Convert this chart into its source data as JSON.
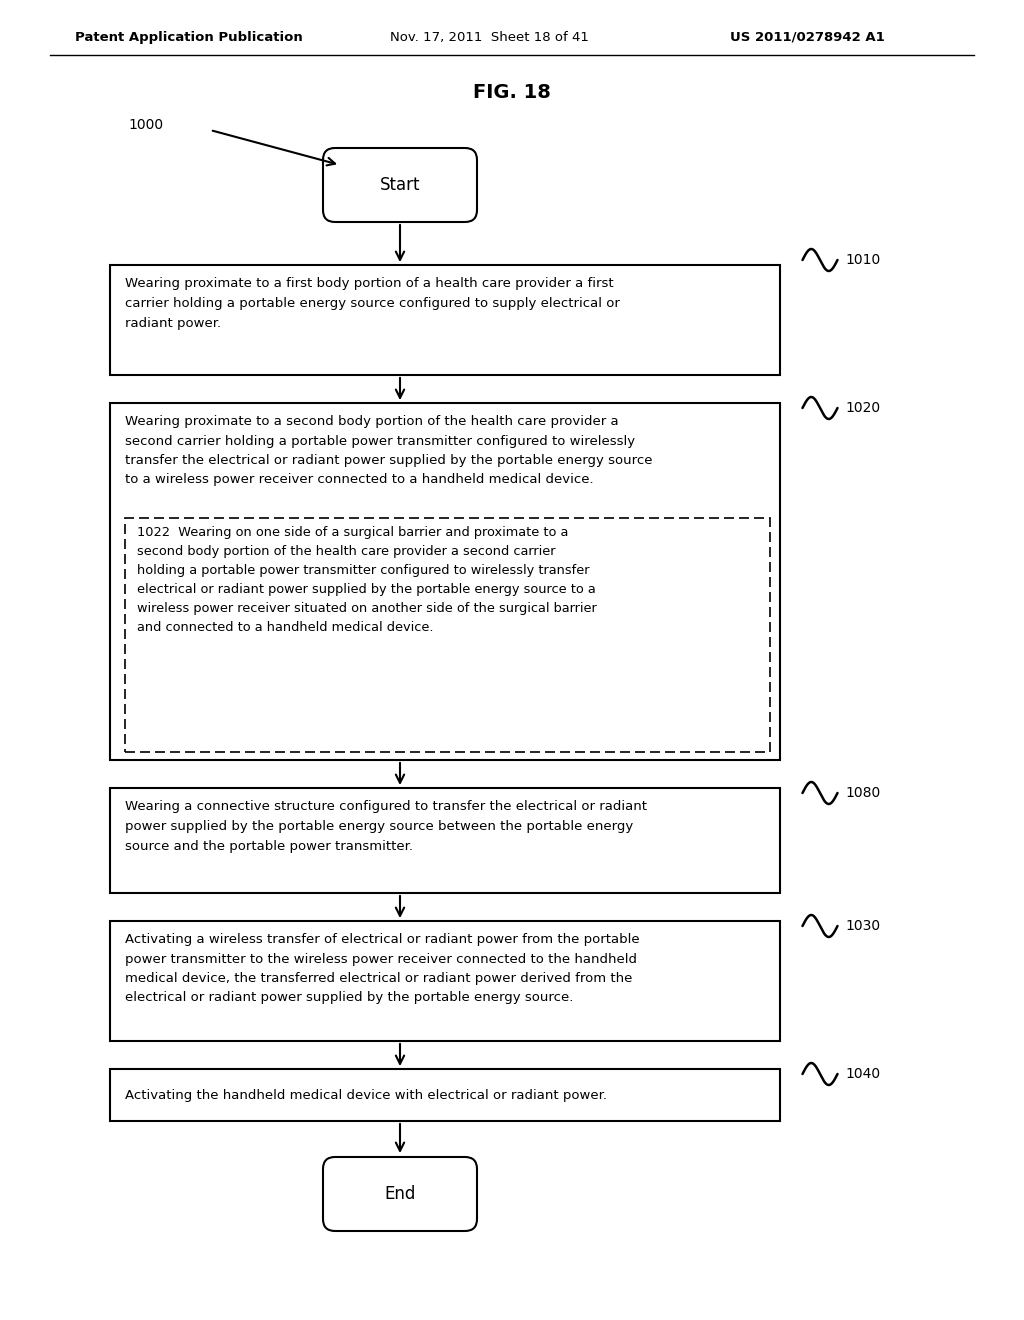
{
  "title": "FIG. 18",
  "header_left": "Patent Application Publication",
  "header_mid": "Nov. 17, 2011  Sheet 18 of 41",
  "header_right": "US 2011/0278942 A1",
  "figure_label": "1000",
  "start_label": "Start",
  "end_label": "End",
  "box1_label": "1010",
  "box2_label": "1020",
  "box3_label": "1022",
  "box4_label": "1080",
  "box5_label": "1030",
  "box6_label": "1040",
  "box1_text": "Wearing proximate to a first body portion of a health care provider a first\ncarrier holding a portable energy source configured to supply electrical or\nradiant power.",
  "box2_text": "Wearing proximate to a second body portion of the health care provider a\nsecond carrier holding a portable power transmitter configured to wirelessly\ntransfer the electrical or radiant power supplied by the portable energy source\nto a wireless power receiver connected to a handheld medical device.",
  "box3_text": "1022  Wearing on one side of a surgical barrier and proximate to a\nsecond body portion of the health care provider a second carrier\nholding a portable power transmitter configured to wirelessly transfer\nelectrical or radiant power supplied by the portable energy source to a\nwireless power receiver situated on another side of the surgical barrier\nand connected to a handheld medical device.",
  "box4_text": "Wearing a connective structure configured to transfer the electrical or radiant\npower supplied by the portable energy source between the portable energy\nsource and the portable power transmitter.",
  "box5_text": "Activating a wireless transfer of electrical or radiant power from the portable\npower transmitter to the wireless power receiver connected to the handheld\nmedical device, the transferred electrical or radiant power derived from the\nelectrical or radiant power supplied by the portable energy source.",
  "box6_text": "Activating the handheld medical device with electrical or radiant power.",
  "bg_color": "#ffffff",
  "text_color": "#000000"
}
